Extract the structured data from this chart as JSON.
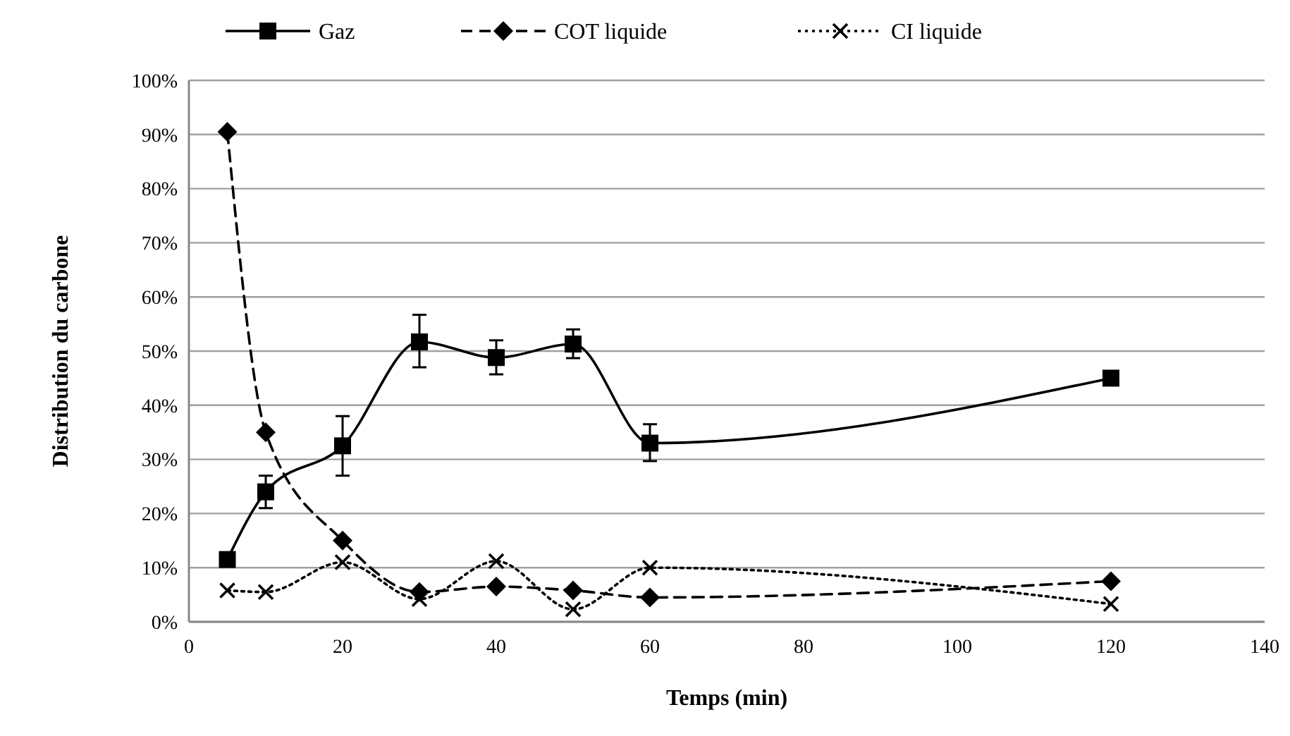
{
  "chart_data": {
    "type": "line",
    "xlabel": "Temps (min)",
    "ylabel": "Distribution du carbone",
    "x": [
      5,
      10,
      20,
      30,
      40,
      50,
      60,
      120
    ],
    "series": [
      {
        "name": "Gaz",
        "color": "#000000",
        "marker": "square",
        "line_style": "solid",
        "values": [
          11.5,
          24,
          32.5,
          51.7,
          48.8,
          51.3,
          33,
          45
        ],
        "errors": [
          null,
          [
            21,
            27
          ],
          [
            27,
            38
          ],
          [
            47,
            56.7
          ],
          [
            45.7,
            52
          ],
          [
            48.7,
            54
          ],
          [
            29.7,
            36.5
          ],
          null
        ]
      },
      {
        "name": "COT liquide",
        "color": "#000000",
        "marker": "diamond",
        "line_style": "dashed",
        "values": [
          90.5,
          35,
          15,
          5.5,
          6.5,
          5.8,
          4.5,
          7.5
        ]
      },
      {
        "name": "CI liquide",
        "color": "#000000",
        "marker": "cross",
        "line_style": "dotted",
        "values": [
          5.8,
          5.5,
          11,
          4.2,
          11.2,
          2.3,
          10,
          3.3
        ]
      }
    ],
    "xlim": [
      0,
      140
    ],
    "xticks": [
      0,
      20,
      40,
      60,
      80,
      100,
      120,
      140
    ],
    "ylim": [
      0,
      100
    ],
    "yticks": [
      {
        "value": 0,
        "label": "0%"
      },
      {
        "value": 10,
        "label": "10%"
      },
      {
        "value": 20,
        "label": "20%"
      },
      {
        "value": 30,
        "label": "30%"
      },
      {
        "value": 40,
        "label": "40%"
      },
      {
        "value": 50,
        "label": "50%"
      },
      {
        "value": 60,
        "label": "60%"
      },
      {
        "value": 70,
        "label": "70%"
      },
      {
        "value": 80,
        "label": "80%"
      },
      {
        "value": 90,
        "label": "90%"
      },
      {
        "value": 100,
        "label": "100%"
      }
    ],
    "grid": "y",
    "legend": "top"
  }
}
